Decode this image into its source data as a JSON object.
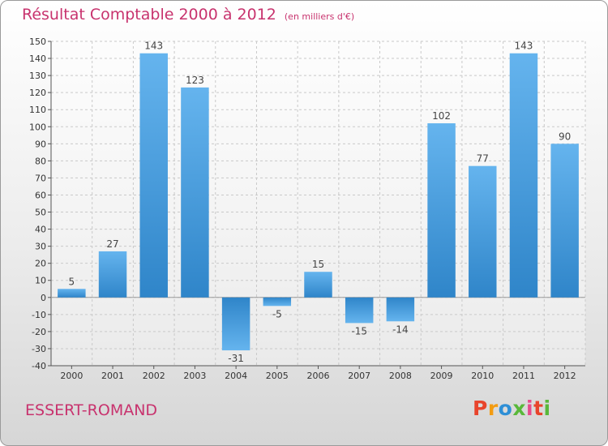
{
  "header": {
    "title": "Résultat Comptable 2000 à 2012",
    "subtitle": "(en milliers d'€)"
  },
  "footer": {
    "commune": "ESSERT-ROMAND",
    "logo": "Proxiti",
    "logo_colors": [
      "#e8442c",
      "#f39c12",
      "#2e8fd6",
      "#59b83a",
      "#e84a8b",
      "#e8442c",
      "#59b83a"
    ]
  },
  "chart_data": {
    "type": "bar",
    "title": "Résultat Comptable 2000 à 2012",
    "subtitle": "(en milliers d'€)",
    "xlabel": "",
    "ylabel": "",
    "categories": [
      "2000",
      "2001",
      "2002",
      "2003",
      "2004",
      "2005",
      "2006",
      "2007",
      "2008",
      "2009",
      "2010",
      "2011",
      "2012"
    ],
    "values": [
      5,
      27,
      143,
      123,
      -31,
      -5,
      15,
      -15,
      -14,
      102,
      77,
      143,
      90
    ],
    "data_labels": [
      "5",
      "27",
      "143",
      "123",
      "-31",
      "-5",
      "15",
      "-15",
      "-14",
      "102",
      "77",
      "143",
      "90"
    ],
    "ylim": [
      -40,
      150
    ],
    "yticks": [
      -40,
      -30,
      -20,
      -10,
      0,
      10,
      20,
      30,
      40,
      50,
      60,
      70,
      80,
      90,
      100,
      110,
      120,
      130,
      140,
      150
    ],
    "grid": true,
    "bar_color": "#3a8fd4",
    "bar_color_light": "#62b1ec"
  }
}
